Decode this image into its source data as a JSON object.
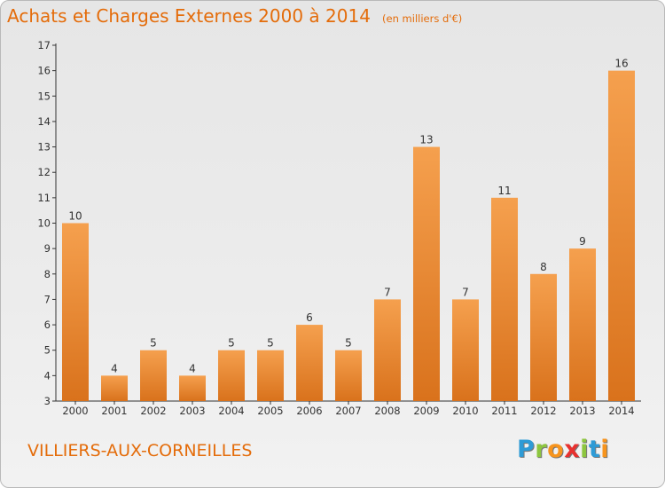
{
  "chart_data": {
    "type": "bar",
    "title": "Achats et Charges Externes 2000 à 2014",
    "subtitle": "(en milliers d'€)",
    "categories": [
      "2000",
      "2001",
      "2002",
      "2003",
      "2004",
      "2005",
      "2006",
      "2007",
      "2008",
      "2009",
      "2010",
      "2011",
      "2012",
      "2013",
      "2014"
    ],
    "values": [
      10,
      4,
      5,
      4,
      5,
      5,
      6,
      5,
      7,
      13,
      7,
      11,
      8,
      9,
      16
    ],
    "ylim": [
      3,
      17
    ],
    "yticks": [
      3,
      4,
      5,
      6,
      7,
      8,
      9,
      10,
      11,
      12,
      13,
      14,
      15,
      16,
      17
    ],
    "xlabel": "",
    "ylabel": "",
    "grid": false,
    "legend": "none",
    "bar_color_top": "#f5a04e",
    "bar_color_bottom": "#d9721c",
    "axis_color": "#333333"
  },
  "commune": "VILLIERS-AUX-CORNEILLES",
  "logo": {
    "letters": [
      "P",
      "r",
      "o",
      "x",
      "i",
      "t",
      "i"
    ],
    "colors": [
      "#2e9bd6",
      "#8dc63f",
      "#f7941d",
      "#e8312f",
      "#8dc63f",
      "#2e9bd6",
      "#f7941d"
    ]
  },
  "colors": {
    "accent": "#e46c0a"
  }
}
